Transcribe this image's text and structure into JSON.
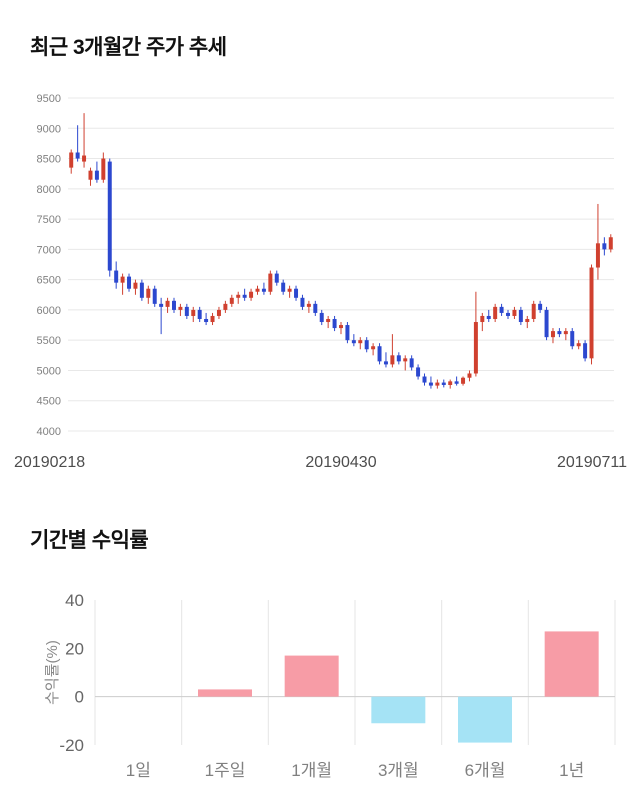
{
  "page": {
    "background": "#ffffff"
  },
  "price_section": {
    "title": "최근 3개월간 주가 추세"
  },
  "return_section": {
    "title": "기간별 수익률"
  },
  "chart_data": [
    {
      "type": "candlestick",
      "title": "최근 3개월간 주가 추세",
      "x_tick_labels": [
        "20190218",
        "20190430",
        "20190711"
      ],
      "y_ticks": [
        4000,
        4500,
        5000,
        5500,
        6000,
        6500,
        7000,
        7500,
        8000,
        8500,
        9000,
        9500
      ],
      "ylim": [
        4000,
        9500
      ],
      "up_color": "#d0402f",
      "down_color": "#2c48cf",
      "grid_color": "#e8e8e8",
      "tick_color": "#808080",
      "date_color": "#4d4d4d",
      "grid": true,
      "ohlc": [
        [
          8350,
          8650,
          8250,
          8600
        ],
        [
          8600,
          9050,
          8450,
          8500
        ],
        [
          8450,
          9250,
          8350,
          8550
        ],
        [
          8150,
          8350,
          8050,
          8300
        ],
        [
          8300,
          8450,
          8100,
          8150
        ],
        [
          8150,
          8600,
          8100,
          8500
        ],
        [
          8450,
          8500,
          6550,
          6650
        ],
        [
          6650,
          6800,
          6350,
          6450
        ],
        [
          6450,
          6600,
          6250,
          6550
        ],
        [
          6550,
          6600,
          6300,
          6350
        ],
        [
          6350,
          6500,
          6250,
          6450
        ],
        [
          6450,
          6500,
          6150,
          6200
        ],
        [
          6200,
          6400,
          6100,
          6350
        ],
        [
          6350,
          6400,
          6050,
          6100
        ],
        [
          6100,
          6200,
          5600,
          6050
        ],
        [
          6050,
          6200,
          5950,
          6150
        ],
        [
          6150,
          6200,
          5950,
          6000
        ],
        [
          6000,
          6100,
          5900,
          6050
        ],
        [
          6050,
          6100,
          5850,
          5900
        ],
        [
          5900,
          6050,
          5800,
          6000
        ],
        [
          6000,
          6050,
          5800,
          5850
        ],
        [
          5850,
          5950,
          5750,
          5800
        ],
        [
          5800,
          5950,
          5750,
          5900
        ],
        [
          5900,
          6050,
          5850,
          6000
        ],
        [
          6000,
          6150,
          5950,
          6100
        ],
        [
          6100,
          6250,
          6050,
          6200
        ],
        [
          6200,
          6300,
          6100,
          6250
        ],
        [
          6250,
          6350,
          6150,
          6200
        ],
        [
          6200,
          6350,
          6150,
          6300
        ],
        [
          6300,
          6400,
          6250,
          6350
        ],
        [
          6350,
          6450,
          6250,
          6300
        ],
        [
          6300,
          6650,
          6250,
          6600
        ],
        [
          6600,
          6650,
          6400,
          6450
        ],
        [
          6450,
          6500,
          6250,
          6300
        ],
        [
          6300,
          6400,
          6200,
          6350
        ],
        [
          6350,
          6400,
          6150,
          6200
        ],
        [
          6200,
          6250,
          6000,
          6050
        ],
        [
          6050,
          6150,
          5950,
          6100
        ],
        [
          6100,
          6150,
          5900,
          5950
        ],
        [
          5950,
          6000,
          5750,
          5800
        ],
        [
          5800,
          5900,
          5700,
          5850
        ],
        [
          5850,
          5900,
          5650,
          5700
        ],
        [
          5700,
          5800,
          5600,
          5750
        ],
        [
          5750,
          5800,
          5450,
          5500
        ],
        [
          5500,
          5600,
          5400,
          5450
        ],
        [
          5450,
          5550,
          5350,
          5500
        ],
        [
          5500,
          5550,
          5300,
          5350
        ],
        [
          5350,
          5450,
          5250,
          5400
        ],
        [
          5400,
          5450,
          5100,
          5150
        ],
        [
          5150,
          5300,
          5050,
          5100
        ],
        [
          5100,
          5600,
          5050,
          5250
        ],
        [
          5250,
          5300,
          5100,
          5150
        ],
        [
          5150,
          5250,
          5000,
          5200
        ],
        [
          5200,
          5250,
          5000,
          5050
        ],
        [
          5050,
          5100,
          4850,
          4900
        ],
        [
          4900,
          4950,
          4750,
          4800
        ],
        [
          4800,
          4900,
          4700,
          4750
        ],
        [
          4750,
          4850,
          4700,
          4800
        ],
        [
          4800,
          4850,
          4720,
          4760
        ],
        [
          4760,
          4850,
          4700,
          4820
        ],
        [
          4820,
          4900,
          4750,
          4780
        ],
        [
          4780,
          4900,
          4750,
          4880
        ],
        [
          4880,
          5000,
          4820,
          4950
        ],
        [
          4950,
          6300,
          4900,
          5800
        ],
        [
          5800,
          5950,
          5650,
          5900
        ],
        [
          5900,
          6000,
          5800,
          5850
        ],
        [
          5850,
          6100,
          5800,
          6050
        ],
        [
          6050,
          6100,
          5900,
          5950
        ],
        [
          5950,
          6000,
          5850,
          5900
        ],
        [
          5900,
          6050,
          5850,
          6000
        ],
        [
          6000,
          6050,
          5750,
          5800
        ],
        [
          5800,
          5900,
          5700,
          5850
        ],
        [
          5850,
          6150,
          5800,
          6100
        ],
        [
          6100,
          6150,
          5950,
          6000
        ],
        [
          6000,
          6050,
          5500,
          5550
        ],
        [
          5550,
          5700,
          5450,
          5650
        ],
        [
          5650,
          5700,
          5550,
          5600
        ],
        [
          5600,
          5700,
          5500,
          5650
        ],
        [
          5650,
          5700,
          5350,
          5400
        ],
        [
          5400,
          5500,
          5350,
          5450
        ],
        [
          5450,
          5500,
          5150,
          5200
        ],
        [
          5200,
          6750,
          5100,
          6700
        ],
        [
          6700,
          7750,
          6500,
          7100
        ],
        [
          7100,
          7200,
          6900,
          7000
        ],
        [
          7000,
          7250,
          6950,
          7200
        ]
      ]
    },
    {
      "type": "bar",
      "title": "기간별 수익률",
      "categories": [
        "1일",
        "1주일",
        "1개월",
        "3개월",
        "6개월",
        "1년"
      ],
      "values": [
        0,
        3,
        17,
        -11,
        -19,
        27
      ],
      "ylabel": "수익률(%)",
      "y_ticks": [
        40,
        20,
        0,
        -20
      ],
      "ylim": [
        -20,
        40
      ],
      "positive_color": "#f79ca6",
      "negative_color": "#a5e3f5",
      "grid_color": "#e5e5e5",
      "zero_line_color": "#cccccc",
      "tick_color": "#666666",
      "category_color": "#808080",
      "ylabel_color": "#888888",
      "grid": true,
      "legend_position": "none"
    }
  ]
}
